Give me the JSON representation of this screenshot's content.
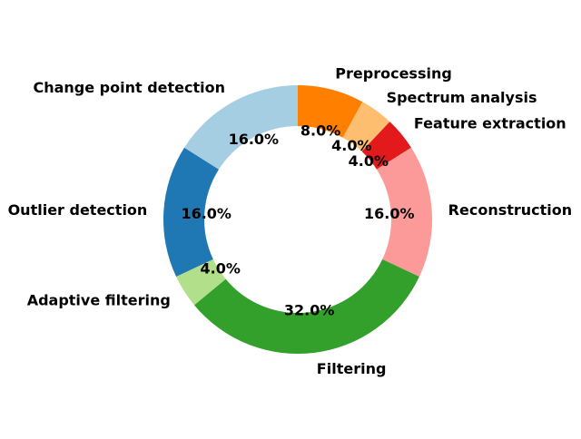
{
  "chart_data": {
    "type": "pie",
    "donut": true,
    "start_angle_deg": 90,
    "direction": "clockwise",
    "categories": [
      "Preprocessing",
      "Spectrum analysis",
      "Feature extraction",
      "Reconstruction",
      "Filtering",
      "Adaptive filtering",
      "Outlier detection",
      "Change point detection"
    ],
    "values": [
      8.0,
      4.0,
      4.0,
      16.0,
      32.0,
      4.0,
      16.0,
      16.0
    ],
    "value_labels": [
      "8.0%",
      "4.0%",
      "4.0%",
      "16.0%",
      "32.0%",
      "4.0%",
      "16.0%",
      "16.0%"
    ],
    "colors": [
      "#ff7f00",
      "#fdbf6f",
      "#e31a1c",
      "#fb9a99",
      "#33a02c",
      "#b2df8a",
      "#1f78b4",
      "#a6cee3"
    ]
  }
}
